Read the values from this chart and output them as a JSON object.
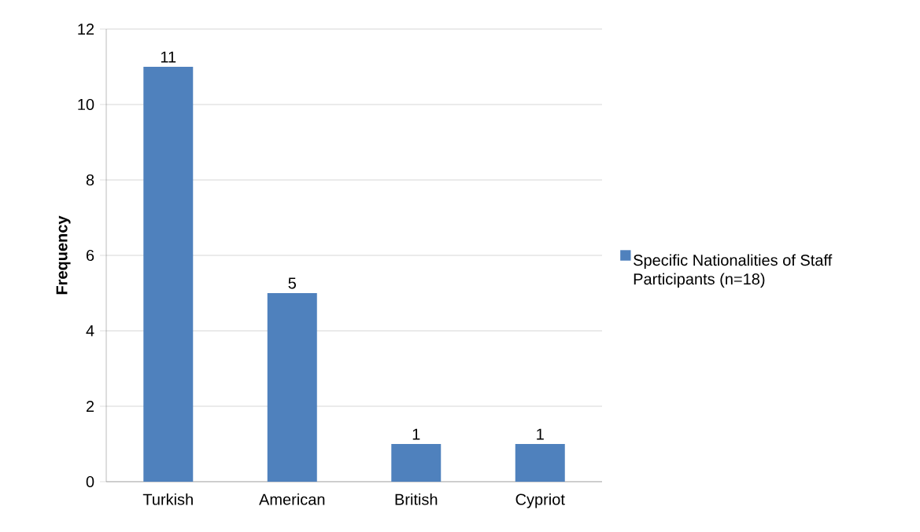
{
  "chart_data": {
    "type": "bar",
    "categories": [
      "Turkish",
      "American",
      "British",
      "Cypriot"
    ],
    "series": [
      {
        "name": "Specific Nationalities of Staff Participants (n=18)",
        "color": "#4f81bd",
        "values": [
          11,
          5,
          1,
          1
        ]
      }
    ],
    "ylabel": "Frequency",
    "ylim": [
      0,
      12
    ],
    "yticks": [
      0,
      2,
      4,
      6,
      8,
      10,
      12
    ],
    "grid": "y",
    "legend": "right",
    "data_labels": true
  }
}
